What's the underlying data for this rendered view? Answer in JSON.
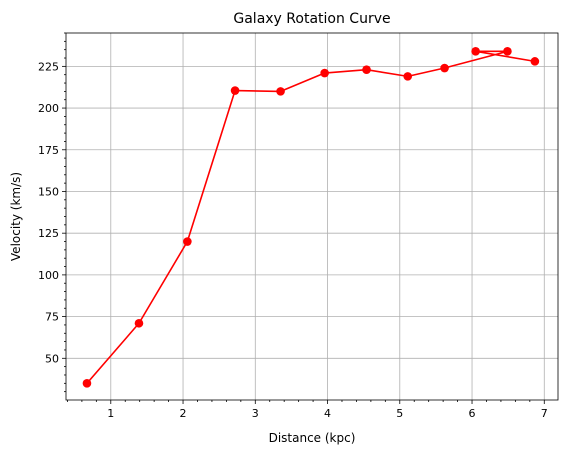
{
  "chart_data": {
    "type": "line",
    "title": "Galaxy Rotation Curve",
    "xlabel": "Distance (kpc)",
    "ylabel": "Velocity (km/s)",
    "xlim": [
      0.38,
      7.19
    ],
    "ylim": [
      25,
      245
    ],
    "xticks": [
      1,
      2,
      3,
      4,
      5,
      6,
      7
    ],
    "yticks": [
      50,
      75,
      100,
      125,
      150,
      175,
      200,
      225
    ],
    "xminor_step": 0.2,
    "yminor_step": 5,
    "grid": true,
    "series": [
      {
        "color": "#ff0000",
        "marker": "circle",
        "x": [
          0.67,
          1.39,
          2.06,
          2.72,
          3.35,
          3.96,
          4.54,
          5.11,
          5.62,
          6.05,
          6.49,
          6.87
        ],
        "y": [
          35,
          71,
          120,
          210.5,
          210,
          221,
          223,
          219,
          224,
          234,
          234,
          228
        ],
        "line_order": [
          0,
          1,
          2,
          3,
          4,
          5,
          6,
          7,
          8,
          10,
          9,
          11
        ]
      }
    ]
  }
}
